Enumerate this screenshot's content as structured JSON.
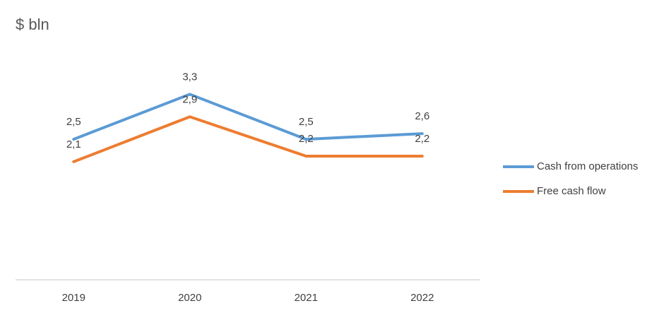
{
  "unit_label": "$ bln",
  "colors": {
    "axis": "#d9d9d9",
    "text": "#404040"
  },
  "chart_data": {
    "type": "line",
    "categories": [
      "2019",
      "2020",
      "2021",
      "2022"
    ],
    "ylim": [
      0,
      4.6
    ],
    "grid": false,
    "legend": "right",
    "series": [
      {
        "name": "Cash from operations",
        "values": [
          2.5,
          3.3,
          2.5,
          2.6
        ],
        "labels": [
          "2,5",
          "3,3",
          "2,5",
          "2,6"
        ],
        "color": "#5b9bd5"
      },
      {
        "name": "Free cash flow",
        "values": [
          2.1,
          2.9,
          2.2,
          2.2
        ],
        "labels": [
          "2,1",
          "2,9",
          "2,2",
          "2,2"
        ],
        "color": "#ed7d31"
      }
    ]
  }
}
